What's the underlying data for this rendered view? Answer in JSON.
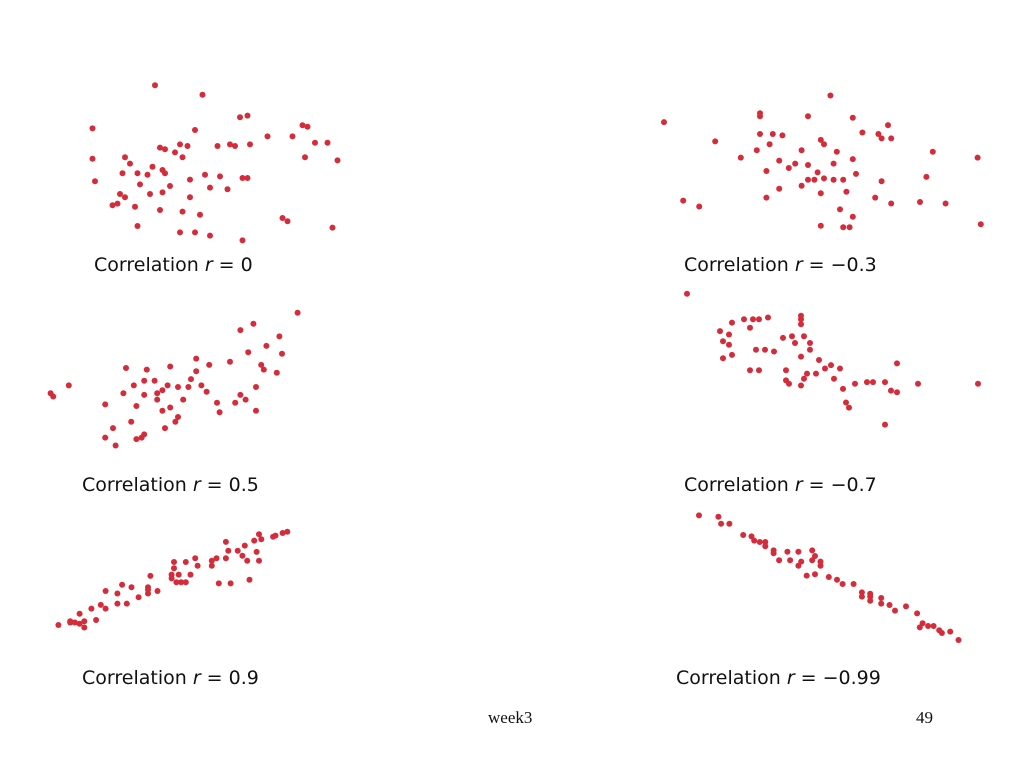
{
  "slide": {
    "footer_left": "week3",
    "page_number": "49",
    "point_color": "#d42c3a"
  },
  "chart_data": [
    {
      "type": "scatter",
      "caption_prefix": "Correlation ",
      "caption_var": "r",
      "caption_rest": " = 0",
      "r": 0,
      "xlim": [
        0,
        1
      ],
      "ylim": [
        0,
        1
      ],
      "points": [
        [
          0.26,
          0.98
        ],
        [
          0.45,
          0.92
        ],
        [
          0.01,
          0.71
        ],
        [
          0.6,
          0.78
        ],
        [
          0.63,
          0.79
        ],
        [
          0.85,
          0.73
        ],
        [
          0.87,
          0.72
        ],
        [
          0.42,
          0.7
        ],
        [
          0.71,
          0.66
        ],
        [
          0.81,
          0.66
        ],
        [
          0.9,
          0.62
        ],
        [
          0.95,
          0.62
        ],
        [
          0.36,
          0.61
        ],
        [
          0.39,
          0.6
        ],
        [
          0.51,
          0.6
        ],
        [
          0.56,
          0.61
        ],
        [
          0.58,
          0.6
        ],
        [
          0.64,
          0.61
        ],
        [
          0.28,
          0.59
        ],
        [
          0.3,
          0.58
        ],
        [
          0.34,
          0.56
        ],
        [
          0.37,
          0.53
        ],
        [
          0.01,
          0.52
        ],
        [
          0.14,
          0.53
        ],
        [
          0.86,
          0.53
        ],
        [
          0.99,
          0.51
        ],
        [
          0.16,
          0.49
        ],
        [
          0.25,
          0.47
        ],
        [
          0.29,
          0.45
        ],
        [
          0.13,
          0.43
        ],
        [
          0.19,
          0.43
        ],
        [
          0.23,
          0.42
        ],
        [
          0.3,
          0.43
        ],
        [
          0.4,
          0.39
        ],
        [
          0.46,
          0.42
        ],
        [
          0.52,
          0.41
        ],
        [
          0.61,
          0.4
        ],
        [
          0.63,
          0.4
        ],
        [
          0.02,
          0.38
        ],
        [
          0.2,
          0.36
        ],
        [
          0.32,
          0.35
        ],
        [
          0.48,
          0.34
        ],
        [
          0.55,
          0.33
        ],
        [
          0.12,
          0.3
        ],
        [
          0.14,
          0.28
        ],
        [
          0.24,
          0.3
        ],
        [
          0.29,
          0.31
        ],
        [
          0.4,
          0.28
        ],
        [
          0.09,
          0.23
        ],
        [
          0.11,
          0.24
        ],
        [
          0.18,
          0.22
        ],
        [
          0.28,
          0.2
        ],
        [
          0.37,
          0.19
        ],
        [
          0.44,
          0.17
        ],
        [
          0.77,
          0.15
        ],
        [
          0.79,
          0.13
        ],
        [
          0.19,
          0.1
        ],
        [
          0.36,
          0.06
        ],
        [
          0.42,
          0.06
        ],
        [
          0.48,
          0.04
        ],
        [
          0.61,
          0.01
        ],
        [
          0.97,
          0.09
        ]
      ]
    },
    {
      "type": "scatter",
      "caption_prefix": "Correlation ",
      "caption_var": "r",
      "caption_rest": " = −0.3",
      "r": -0.3,
      "xlim": [
        0,
        1
      ],
      "ylim": [
        0,
        1
      ],
      "points": [
        [
          0.52,
          0.99
        ],
        [
          0.3,
          0.87
        ],
        [
          0.3,
          0.85
        ],
        [
          0.45,
          0.85
        ],
        [
          0.59,
          0.84
        ],
        [
          0.7,
          0.79
        ],
        [
          0.0,
          0.81
        ],
        [
          0.62,
          0.74
        ],
        [
          0.67,
          0.73
        ],
        [
          0.68,
          0.7
        ],
        [
          0.71,
          0.7
        ],
        [
          0.3,
          0.73
        ],
        [
          0.34,
          0.73
        ],
        [
          0.37,
          0.72
        ],
        [
          0.49,
          0.69
        ],
        [
          0.5,
          0.66
        ],
        [
          0.33,
          0.66
        ],
        [
          0.29,
          0.62
        ],
        [
          0.43,
          0.62
        ],
        [
          0.54,
          0.61
        ],
        [
          0.16,
          0.68
        ],
        [
          0.24,
          0.57
        ],
        [
          0.36,
          0.55
        ],
        [
          0.41,
          0.53
        ],
        [
          0.45,
          0.52
        ],
        [
          0.39,
          0.5
        ],
        [
          0.53,
          0.53
        ],
        [
          0.59,
          0.56
        ],
        [
          0.84,
          0.61
        ],
        [
          0.98,
          0.57
        ],
        [
          0.32,
          0.48
        ],
        [
          0.48,
          0.47
        ],
        [
          0.47,
          0.42
        ],
        [
          0.56,
          0.42
        ],
        [
          0.68,
          0.41
        ],
        [
          0.82,
          0.44
        ],
        [
          0.45,
          0.42
        ],
        [
          0.53,
          0.42
        ],
        [
          0.5,
          0.43
        ],
        [
          0.6,
          0.46
        ],
        [
          0.36,
          0.36
        ],
        [
          0.43,
          0.38
        ],
        [
          0.57,
          0.34
        ],
        [
          0.32,
          0.3
        ],
        [
          0.49,
          0.33
        ],
        [
          0.66,
          0.3
        ],
        [
          0.71,
          0.26
        ],
        [
          0.8,
          0.27
        ],
        [
          0.88,
          0.26
        ],
        [
          0.06,
          0.28
        ],
        [
          0.11,
          0.24
        ],
        [
          0.55,
          0.22
        ],
        [
          0.59,
          0.17
        ],
        [
          0.49,
          0.11
        ],
        [
          0.56,
          0.1
        ],
        [
          0.58,
          0.1
        ],
        [
          0.99,
          0.12
        ]
      ]
    },
    {
      "type": "scatter",
      "caption_prefix": "Correlation ",
      "caption_var": "r",
      "caption_rest": " = 0.5",
      "r": 0.5,
      "xlim": [
        0,
        1
      ],
      "ylim": [
        0,
        1
      ],
      "points": [
        [
          0.96,
          0.97
        ],
        [
          0.79,
          0.9
        ],
        [
          0.74,
          0.86
        ],
        [
          0.89,
          0.82
        ],
        [
          0.84,
          0.76
        ],
        [
          0.77,
          0.72
        ],
        [
          0.9,
          0.71
        ],
        [
          0.7,
          0.66
        ],
        [
          0.57,
          0.68
        ],
        [
          0.62,
          0.64
        ],
        [
          0.57,
          0.6
        ],
        [
          0.82,
          0.64
        ],
        [
          0.83,
          0.61
        ],
        [
          0.88,
          0.59
        ],
        [
          0.3,
          0.62
        ],
        [
          0.38,
          0.61
        ],
        [
          0.47,
          0.63
        ],
        [
          0.55,
          0.55
        ],
        [
          0.54,
          0.5
        ],
        [
          0.59,
          0.51
        ],
        [
          0.8,
          0.5
        ],
        [
          0.37,
          0.54
        ],
        [
          0.41,
          0.54
        ],
        [
          0.46,
          0.51
        ],
        [
          0.44,
          0.48
        ],
        [
          0.42,
          0.46
        ],
        [
          0.5,
          0.5
        ],
        [
          0.33,
          0.51
        ],
        [
          0.29,
          0.46
        ],
        [
          0.37,
          0.45
        ],
        [
          0.42,
          0.42
        ],
        [
          0.52,
          0.42
        ],
        [
          0.61,
          0.47
        ],
        [
          0.65,
          0.4
        ],
        [
          0.72,
          0.4
        ],
        [
          0.74,
          0.45
        ],
        [
          0.76,
          0.42
        ],
        [
          0.8,
          0.35
        ],
        [
          0.01,
          0.46
        ],
        [
          0.08,
          0.51
        ],
        [
          0.02,
          0.44
        ],
        [
          0.22,
          0.39
        ],
        [
          0.34,
          0.38
        ],
        [
          0.44,
          0.35
        ],
        [
          0.47,
          0.37
        ],
        [
          0.5,
          0.31
        ],
        [
          0.66,
          0.34
        ],
        [
          0.49,
          0.28
        ],
        [
          0.32,
          0.28
        ],
        [
          0.45,
          0.24
        ],
        [
          0.37,
          0.2
        ],
        [
          0.36,
          0.18
        ],
        [
          0.34,
          0.17
        ],
        [
          0.25,
          0.24
        ],
        [
          0.22,
          0.18
        ],
        [
          0.26,
          0.13
        ]
      ]
    },
    {
      "type": "scatter",
      "caption_prefix": "Correlation ",
      "caption_var": "r",
      "caption_rest": " = −0.7",
      "r": -0.7,
      "xlim": [
        0,
        1
      ],
      "ylim": [
        0,
        1
      ],
      "points": [
        [
          0.01,
          0.99
        ],
        [
          0.2,
          0.84
        ],
        [
          0.23,
          0.84
        ],
        [
          0.25,
          0.84
        ],
        [
          0.28,
          0.85
        ],
        [
          0.16,
          0.82
        ],
        [
          0.22,
          0.79
        ],
        [
          0.39,
          0.84
        ],
        [
          0.39,
          0.86
        ],
        [
          0.39,
          0.81
        ],
        [
          0.12,
          0.77
        ],
        [
          0.15,
          0.75
        ],
        [
          0.36,
          0.74
        ],
        [
          0.33,
          0.73
        ],
        [
          0.4,
          0.74
        ],
        [
          0.37,
          0.7
        ],
        [
          0.42,
          0.7
        ],
        [
          0.13,
          0.71
        ],
        [
          0.15,
          0.69
        ],
        [
          0.24,
          0.66
        ],
        [
          0.27,
          0.66
        ],
        [
          0.3,
          0.65
        ],
        [
          0.42,
          0.66
        ],
        [
          0.16,
          0.63
        ],
        [
          0.13,
          0.61
        ],
        [
          0.39,
          0.62
        ],
        [
          0.45,
          0.6
        ],
        [
          0.49,
          0.57
        ],
        [
          0.71,
          0.58
        ],
        [
          0.22,
          0.54
        ],
        [
          0.25,
          0.54
        ],
        [
          0.34,
          0.54
        ],
        [
          0.47,
          0.55
        ],
        [
          0.52,
          0.55
        ],
        [
          0.4,
          0.49
        ],
        [
          0.41,
          0.52
        ],
        [
          0.44,
          0.52
        ],
        [
          0.34,
          0.48
        ],
        [
          0.35,
          0.46
        ],
        [
          0.5,
          0.49
        ],
        [
          0.57,
          0.46
        ],
        [
          0.39,
          0.45
        ],
        [
          0.53,
          0.43
        ],
        [
          0.61,
          0.47
        ],
        [
          0.63,
          0.47
        ],
        [
          0.67,
          0.47
        ],
        [
          0.78,
          0.46
        ],
        [
          0.98,
          0.46
        ],
        [
          0.69,
          0.42
        ],
        [
          0.71,
          0.41
        ],
        [
          0.54,
          0.35
        ],
        [
          0.55,
          0.32
        ],
        [
          0.67,
          0.22
        ]
      ]
    },
    {
      "type": "scatter",
      "caption_prefix": "Correlation ",
      "caption_var": "r",
      "caption_rest": " = 0.9",
      "r": 0.9,
      "xlim": [
        0,
        1
      ],
      "ylim": [
        0,
        1
      ],
      "points": [
        [
          0.98,
          0.97
        ],
        [
          0.96,
          0.96
        ],
        [
          0.93,
          0.94
        ],
        [
          0.92,
          0.93
        ],
        [
          0.86,
          0.95
        ],
        [
          0.87,
          0.91
        ],
        [
          0.84,
          0.9
        ],
        [
          0.8,
          0.86
        ],
        [
          0.72,
          0.89
        ],
        [
          0.77,
          0.82
        ],
        [
          0.85,
          0.81
        ],
        [
          0.79,
          0.78
        ],
        [
          0.81,
          0.74
        ],
        [
          0.86,
          0.74
        ],
        [
          0.72,
          0.76
        ],
        [
          0.73,
          0.82
        ],
        [
          0.68,
          0.76
        ],
        [
          0.66,
          0.74
        ],
        [
          0.66,
          0.7
        ],
        [
          0.59,
          0.76
        ],
        [
          0.6,
          0.7
        ],
        [
          0.55,
          0.73
        ],
        [
          0.52,
          0.63
        ],
        [
          0.57,
          0.63
        ],
        [
          0.5,
          0.73
        ],
        [
          0.5,
          0.68
        ],
        [
          0.49,
          0.63
        ],
        [
          0.49,
          0.6
        ],
        [
          0.4,
          0.62
        ],
        [
          0.69,
          0.56
        ],
        [
          0.74,
          0.56
        ],
        [
          0.82,
          0.59
        ],
        [
          0.51,
          0.57
        ],
        [
          0.53,
          0.57
        ],
        [
          0.55,
          0.57
        ],
        [
          0.39,
          0.53
        ],
        [
          0.39,
          0.51
        ],
        [
          0.43,
          0.5
        ],
        [
          0.39,
          0.48
        ],
        [
          0.28,
          0.55
        ],
        [
          0.32,
          0.53
        ],
        [
          0.35,
          0.45
        ],
        [
          0.3,
          0.4
        ],
        [
          0.26,
          0.4
        ],
        [
          0.26,
          0.48
        ],
        [
          0.21,
          0.5
        ],
        [
          0.19,
          0.39
        ],
        [
          0.21,
          0.36
        ],
        [
          0.15,
          0.36
        ],
        [
          0.1,
          0.32
        ],
        [
          0.12,
          0.26
        ],
        [
          0.17,
          0.27
        ],
        [
          0.1,
          0.24
        ],
        [
          0.08,
          0.25
        ],
        [
          0.06,
          0.25
        ],
        [
          0.06,
          0.26
        ],
        [
          0.12,
          0.21
        ],
        [
          0.01,
          0.23
        ]
      ]
    },
    {
      "type": "scatter",
      "caption_prefix": "Correlation ",
      "caption_var": "r",
      "caption_rest": " = −0.99",
      "r": -0.99,
      "xlim": [
        0,
        1
      ],
      "ylim": [
        0,
        1
      ],
      "points": [
        [
          0.04,
          0.99
        ],
        [
          0.11,
          0.98
        ],
        [
          0.15,
          0.93
        ],
        [
          0.12,
          0.93
        ],
        [
          0.2,
          0.85
        ],
        [
          0.23,
          0.84
        ],
        [
          0.24,
          0.81
        ],
        [
          0.26,
          0.8
        ],
        [
          0.28,
          0.8
        ],
        [
          0.28,
          0.77
        ],
        [
          0.31,
          0.74
        ],
        [
          0.31,
          0.72
        ],
        [
          0.36,
          0.73
        ],
        [
          0.4,
          0.73
        ],
        [
          0.45,
          0.74
        ],
        [
          0.46,
          0.7
        ],
        [
          0.45,
          0.67
        ],
        [
          0.48,
          0.66
        ],
        [
          0.48,
          0.63
        ],
        [
          0.41,
          0.66
        ],
        [
          0.4,
          0.63
        ],
        [
          0.37,
          0.67
        ],
        [
          0.33,
          0.67
        ],
        [
          0.43,
          0.56
        ],
        [
          0.46,
          0.57
        ],
        [
          0.51,
          0.55
        ],
        [
          0.54,
          0.53
        ],
        [
          0.56,
          0.5
        ],
        [
          0.6,
          0.5
        ],
        [
          0.63,
          0.44
        ],
        [
          0.63,
          0.41
        ],
        [
          0.66,
          0.43
        ],
        [
          0.66,
          0.41
        ],
        [
          0.66,
          0.38
        ],
        [
          0.7,
          0.4
        ],
        [
          0.7,
          0.36
        ],
        [
          0.73,
          0.35
        ],
        [
          0.75,
          0.31
        ],
        [
          0.79,
          0.34
        ],
        [
          0.83,
          0.29
        ],
        [
          0.85,
          0.22
        ],
        [
          0.87,
          0.2
        ],
        [
          0.89,
          0.2
        ],
        [
          0.91,
          0.17
        ],
        [
          0.84,
          0.19
        ],
        [
          0.95,
          0.16
        ],
        [
          0.92,
          0.15
        ],
        [
          0.98,
          0.1
        ]
      ]
    }
  ]
}
